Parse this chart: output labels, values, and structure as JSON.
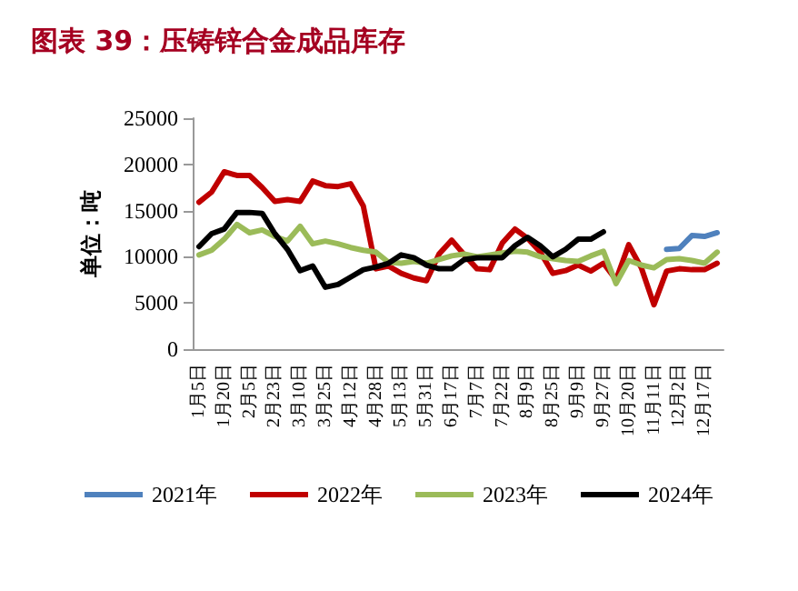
{
  "chart_data": {
    "type": "line",
    "title": "图表 39：压铸锌合金成品库存",
    "ylabel": "单位：吨",
    "categories": [
      "1月5日",
      null,
      "1月20日",
      null,
      "2月5日",
      null,
      "2月23日",
      null,
      "3月10日",
      null,
      "3月25日",
      null,
      "4月12日",
      null,
      "4月28日",
      null,
      "5月13日",
      null,
      "5月31日",
      null,
      "6月17日",
      null,
      "7月7日",
      null,
      "7月22日",
      null,
      "8月9日",
      null,
      "8月25日",
      null,
      "9月9日",
      null,
      "9月27日",
      null,
      "10月20日",
      null,
      "11月11日",
      null,
      "12月2日",
      null,
      "12月17日",
      null
    ],
    "series": [
      {
        "name": "2021年",
        "color": "#4f81bd",
        "values": [
          null,
          null,
          null,
          null,
          null,
          null,
          null,
          null,
          null,
          null,
          null,
          null,
          null,
          null,
          null,
          null,
          null,
          null,
          null,
          null,
          null,
          null,
          null,
          null,
          null,
          null,
          null,
          null,
          null,
          null,
          null,
          null,
          null,
          null,
          null,
          null,
          null,
          10800,
          10900,
          12300,
          12200,
          12600
        ]
      },
      {
        "name": "2022年",
        "color": "#c00000",
        "values": [
          15900,
          17000,
          19200,
          18800,
          18800,
          17500,
          16000,
          16200,
          16000,
          18200,
          17700,
          17600,
          17900,
          15500,
          8700,
          9000,
          8200,
          7700,
          7400,
          10300,
          11800,
          10200,
          8700,
          8600,
          11500,
          13000,
          12000,
          10500,
          8200,
          8500,
          9100,
          8450,
          9300,
          7500,
          11300,
          8800,
          4800,
          8450,
          8700,
          8600,
          8600,
          9300
        ]
      },
      {
        "name": "2023年",
        "color": "#9bbb59",
        "values": [
          10200,
          10700,
          11900,
          13500,
          12600,
          12900,
          12200,
          11700,
          13300,
          11400,
          11700,
          11400,
          11000,
          10700,
          10500,
          9400,
          9300,
          9500,
          9300,
          9700,
          10100,
          10300,
          10000,
          10200,
          10400,
          10600,
          10500,
          10000,
          9800,
          9600,
          9500,
          10100,
          10600,
          7100,
          9600,
          9100,
          8800,
          9700,
          9800,
          9600,
          9300,
          10500
        ]
      },
      {
        "name": "2024年",
        "color": "#000000",
        "values": [
          11100,
          12500,
          13000,
          14800,
          14800,
          14700,
          12500,
          10800,
          8500,
          9000,
          6700,
          7000,
          7800,
          8600,
          8900,
          9300,
          10200,
          9900,
          9100,
          8700,
          8700,
          9700,
          9900,
          9900,
          9900,
          11200,
          12100,
          11200,
          10000,
          10800,
          11900,
          11900,
          12700,
          null,
          null,
          null,
          null,
          null,
          null,
          null,
          null,
          null
        ]
      }
    ],
    "ylim": [
      0,
      25000
    ],
    "yticks": [
      0,
      5000,
      10000,
      15000,
      20000,
      25000
    ],
    "grid": false,
    "legend": "bottom"
  }
}
